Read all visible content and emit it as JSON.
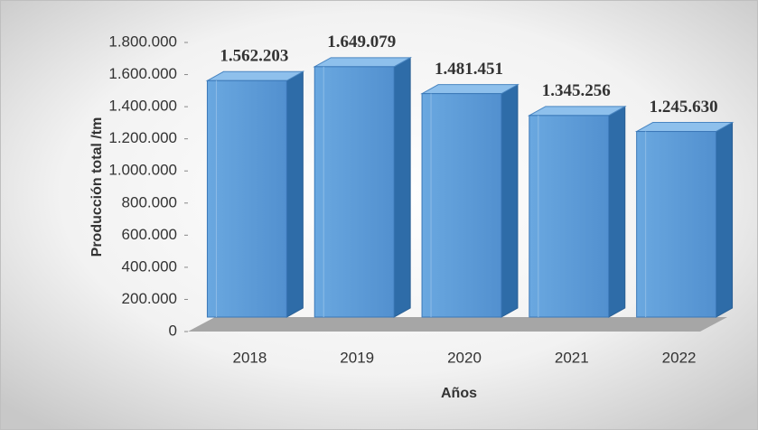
{
  "chart_data": {
    "type": "bar3d",
    "categories": [
      "2018",
      "2019",
      "2020",
      "2021",
      "2022"
    ],
    "values": [
      1562203,
      1649079,
      1481451,
      1345256,
      1245630
    ],
    "value_labels": [
      "1.562.203",
      "1.649.079",
      "1.481.451",
      "1.345.256",
      "1.245.630"
    ],
    "color": "#5b9bd5",
    "ylim": [
      0,
      1800000
    ],
    "yticks": [
      0,
      {
        "value": 200000,
        "label": "200.000"
      },
      {
        "value": 400000,
        "label": "400.000"
      },
      {
        "value": 600000,
        "label": "600.000"
      },
      {
        "value": 800000,
        "label": "800.000"
      },
      {
        "value": 1000000,
        "label": "1.000.000"
      },
      {
        "value": 1200000,
        "label": "1.200.000"
      },
      {
        "value": 1400000,
        "label": "1.400.000"
      },
      {
        "value": 1600000,
        "label": "1.600.000"
      },
      {
        "value": 1800000,
        "label": "1.800.000"
      }
    ],
    "ylabel": "Producción total /tm",
    "xlabel": "Años"
  }
}
